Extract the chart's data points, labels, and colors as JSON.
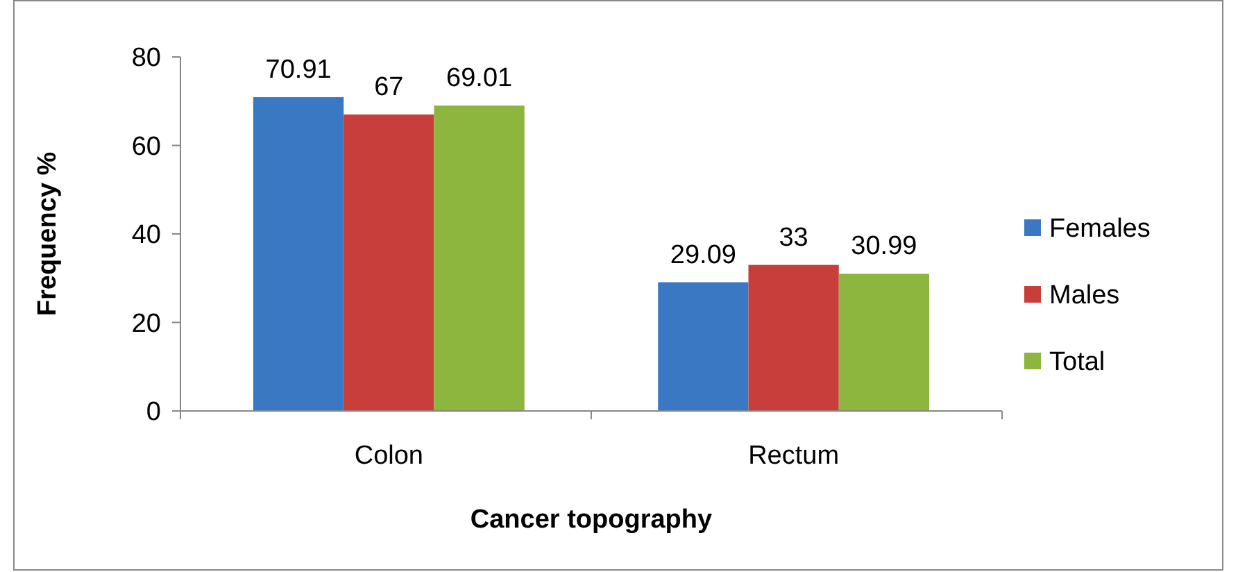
{
  "chart_data": {
    "type": "bar",
    "xlabel": "Cancer topography",
    "ylabel": "Frequency %",
    "categories": [
      "Colon",
      "Rectum"
    ],
    "series": [
      {
        "name": "Females",
        "color": "#3b78c4",
        "values": [
          70.91,
          29.09
        ]
      },
      {
        "name": "Males",
        "color": "#c83e3a",
        "values": [
          67,
          33
        ]
      },
      {
        "name": "Total",
        "color": "#8db63e",
        "values": [
          69.01,
          30.99
        ]
      }
    ],
    "ylim": [
      0,
      80
    ],
    "yticks": [
      0,
      20,
      40,
      60,
      80
    ],
    "grid": false,
    "legend": "right",
    "data_labels": true
  }
}
